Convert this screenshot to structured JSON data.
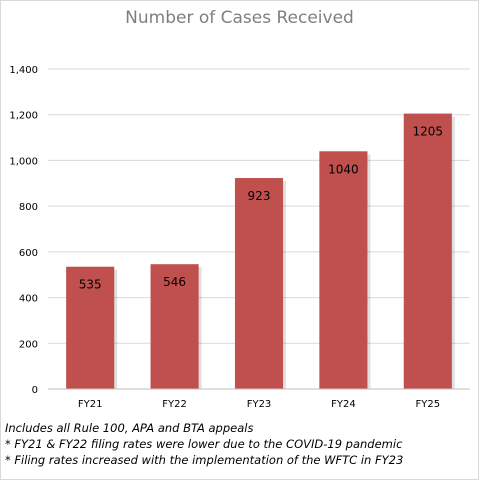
{
  "chart_data": {
    "type": "bar",
    "title": "Number of Cases Received",
    "categories": [
      "FY21",
      "FY22",
      "FY23",
      "FY24",
      "FY25"
    ],
    "values": [
      535,
      546,
      923,
      1040,
      1205
    ],
    "data_labels": [
      "535",
      "546",
      "923",
      "1040",
      "1205"
    ],
    "ylim": [
      0,
      1400
    ],
    "yticks": [
      {
        "value": 0,
        "label": "0"
      },
      {
        "value": 200,
        "label": "200"
      },
      {
        "value": 400,
        "label": "400"
      },
      {
        "value": 600,
        "label": "600"
      },
      {
        "value": 800,
        "label": "800"
      },
      {
        "value": 1000,
        "label": "1,000"
      },
      {
        "value": 1200,
        "label": "1,200"
      },
      {
        "value": 1400,
        "label": "1,400"
      }
    ],
    "grid": true,
    "bar_color": "#c0504d",
    "xlabel": "",
    "ylabel": ""
  },
  "notes": [
    "Includes all Rule 100, APA and BTA appeals",
    "* FY21 & FY22 filing rates were lower due to the COVID-19 pandemic",
    "* Filing rates increased with the implementation of the WFTC in FY23"
  ]
}
